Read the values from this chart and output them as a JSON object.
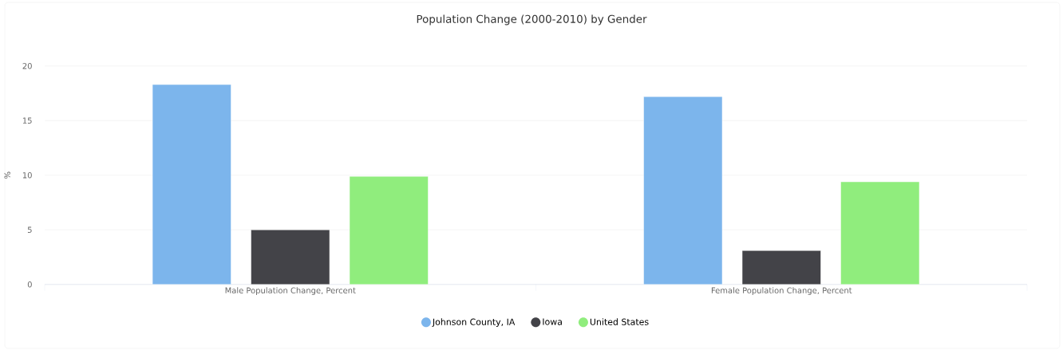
{
  "chart_data": {
    "type": "bar",
    "title": "Population Change (2000-2010) by Gender",
    "ylabel": "%",
    "categories": [
      "Male Population Change, Percent",
      "Female Population Change, Percent"
    ],
    "series": [
      {
        "name": "Johnson County, IA",
        "color": "#7cb5ec",
        "values": [
          18.3,
          17.2
        ]
      },
      {
        "name": "Iowa",
        "color": "#434348",
        "values": [
          5.0,
          3.1
        ]
      },
      {
        "name": "United States",
        "color": "#90ed7d",
        "values": [
          9.9,
          9.4
        ]
      }
    ],
    "ylim": [
      0,
      20
    ],
    "yticks": [
      0,
      5,
      10,
      15,
      20
    ],
    "grid": "y",
    "legend": "bottom"
  }
}
